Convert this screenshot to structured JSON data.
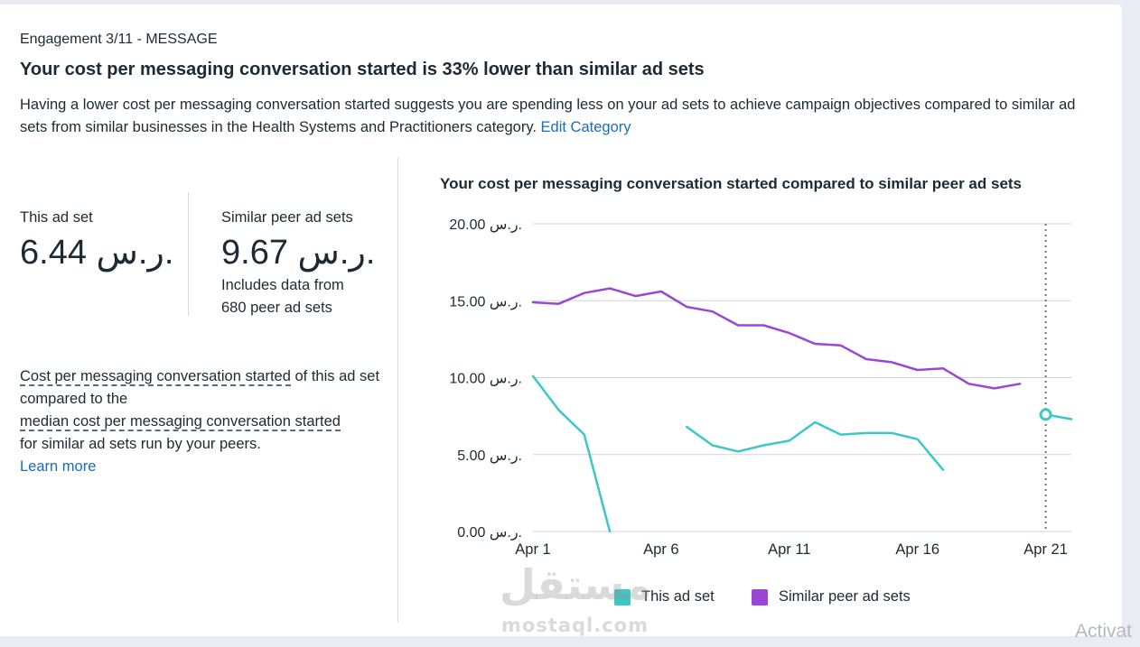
{
  "header": {
    "eyebrow": "Engagement 3/11 - MESSAGE",
    "headline": "Your cost per messaging conversation started is 33% lower than similar ad sets",
    "description": "Having a lower cost per messaging conversation started suggests you are spending less on your ad sets to achieve campaign objectives compared to similar ad sets from similar businesses in the Health Systems and Practitioners category.",
    "edit_category_link": "Edit Category"
  },
  "metrics": {
    "this_ad_set": {
      "label": "This ad set",
      "value": "6.44 ر.س."
    },
    "peer_ad_sets": {
      "label": "Similar peer ad sets",
      "value": "9.67 ر.س.",
      "note_line1": "Includes data from",
      "note_line2": "680 peer ad sets"
    }
  },
  "explanation": {
    "term1": "Cost per messaging conversation started",
    "text1": " of this ad set compared to the",
    "term2": "median cost per messaging conversation started",
    "text2": "for similar ad sets run by your peers.",
    "learn_more": "Learn more"
  },
  "colors": {
    "this_ad_set": "#3cc8c8",
    "peer": "#9b46d6",
    "link": "#1a6dbb"
  },
  "chart_data": {
    "type": "line",
    "title": "Your cost per messaging conversation started compared to similar peer ad sets",
    "y_tick_labels": [
      "0.00 ر.س.",
      "5.00 ر.س.",
      "10.00 ر.س.",
      "15.00 ر.س.",
      "20.00 ر.س."
    ],
    "ylim": [
      0,
      20
    ],
    "x_tick_labels": [
      "Apr 1",
      "Apr 6",
      "Apr 11",
      "Apr 16",
      "Apr 21"
    ],
    "x_ticks": [
      1,
      6,
      11,
      16,
      21
    ],
    "xlim": [
      1,
      22
    ],
    "grid": true,
    "legend_position": "bottom",
    "highlight_date": 21,
    "series": [
      {
        "name": "This ad set",
        "points": [
          [
            1,
            10.1
          ],
          [
            2,
            7.9
          ],
          [
            3,
            6.3
          ],
          [
            4,
            0
          ],
          null,
          [
            7,
            6.8
          ],
          [
            8,
            5.6
          ],
          [
            9,
            5.2
          ],
          [
            10,
            5.6
          ],
          [
            11,
            5.9
          ],
          [
            12,
            7.1
          ],
          [
            13,
            6.3
          ],
          [
            14,
            6.4
          ],
          [
            15,
            6.4
          ],
          [
            16,
            6.0
          ],
          [
            17,
            4.0
          ],
          null,
          [
            21,
            7.6
          ],
          [
            22,
            7.3
          ]
        ]
      },
      {
        "name": "Similar peer ad sets",
        "points": [
          [
            1,
            14.9
          ],
          [
            2,
            14.8
          ],
          [
            3,
            15.5
          ],
          [
            4,
            15.8
          ],
          [
            5,
            15.3
          ],
          [
            6,
            15.6
          ],
          [
            7,
            14.6
          ],
          [
            8,
            14.3
          ],
          [
            9,
            13.4
          ],
          [
            10,
            13.4
          ],
          [
            11,
            12.9
          ],
          [
            12,
            12.2
          ],
          [
            13,
            12.1
          ],
          [
            14,
            11.2
          ],
          [
            15,
            11.0
          ],
          [
            16,
            10.5
          ],
          [
            17,
            10.6
          ],
          [
            18,
            9.6
          ],
          [
            19,
            9.3
          ],
          [
            20,
            9.6
          ]
        ]
      }
    ]
  },
  "watermark": {
    "arabic": "مستقل",
    "latin": "mostaql.com"
  },
  "os_overlay": {
    "text": "Activat"
  }
}
